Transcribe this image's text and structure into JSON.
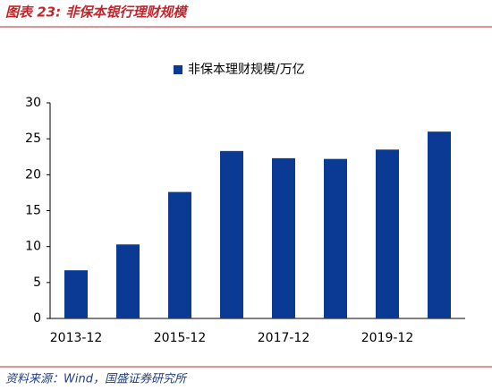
{
  "chart_data": {
    "type": "bar",
    "title": "图表 23:  非保本银行理财规模",
    "categories": [
      "2013-12",
      null,
      "2015-12",
      null,
      "2017-12",
      null,
      "2019-12",
      null
    ],
    "series": [
      {
        "name": "非保本理财规模/万亿",
        "color": "#0b3a94",
        "values": [
          6.7,
          10.3,
          17.6,
          23.3,
          22.3,
          22.2,
          23.5,
          26.0
        ]
      }
    ],
    "ylim": [
      0,
      30
    ],
    "yticks": [
      0,
      5,
      10,
      15,
      20,
      25,
      30
    ],
    "grid": false,
    "legend": "top"
  },
  "footer": {
    "source": "资料来源：Wind，国盛证券研究所"
  }
}
